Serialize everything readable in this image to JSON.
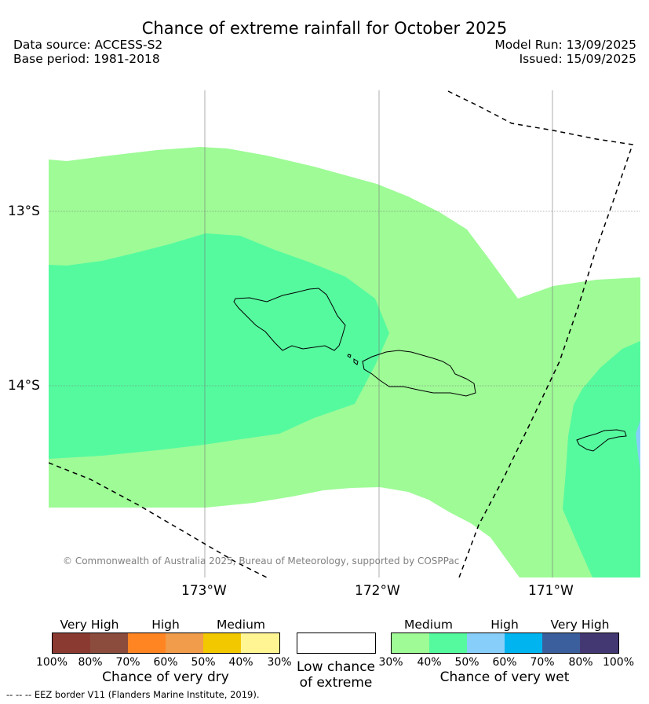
{
  "header": {
    "title": "Chance of extreme rainfall for October 2025",
    "data_source": "Data source: ACCESS-S2",
    "base_period": "Base period: 1981-2018",
    "model_run": "Model Run: 13/09/2025",
    "issued": "Issued: 15/09/2025"
  },
  "map": {
    "lat_labels": [
      "13°S",
      "14°S"
    ],
    "lon_labels": [
      "173°W",
      "172°W",
      "171°W"
    ],
    "copyright": "© Commonwealth of Australia 2025, Bureau of Meteorology, supported by COSPPac",
    "colors": {
      "wet_medium_low": "#9efb96",
      "wet_medium_high": "#55fa9f",
      "wet_high_low": "#87cffa"
    }
  },
  "legend_dry": {
    "categories": [
      "Very High",
      "High",
      "Medium"
    ],
    "ticks": [
      "100%",
      "80%",
      "70%",
      "60%",
      "50%",
      "40%",
      "30%"
    ],
    "colors": [
      "#8b3a32",
      "#8b4c3e",
      "#ff8422",
      "#f19c4a",
      "#f2c800",
      "#fff593"
    ],
    "title": "Chance of very dry"
  },
  "legend_low": {
    "title_line1": "Low chance",
    "title_line2": "of extreme",
    "color": "#ffffff"
  },
  "legend_wet": {
    "categories": [
      "Medium",
      "High",
      "Very High"
    ],
    "ticks": [
      "30%",
      "40%",
      "50%",
      "60%",
      "70%",
      "80%",
      "100%"
    ],
    "colors": [
      "#9efb96",
      "#55fa9f",
      "#87cffa",
      "#00b4f0",
      "#3b5f9c",
      "#443873"
    ],
    "title": "Chance of very wet"
  },
  "footer": {
    "eez_note": "--  --  -- EEZ border V11 (Flanders Marine Institute, 2019)."
  }
}
